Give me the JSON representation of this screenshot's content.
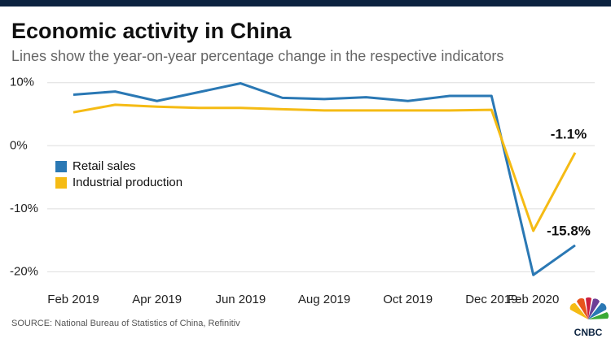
{
  "chart_data": {
    "type": "line",
    "title": "Economic activity in China",
    "subtitle": "Lines show the year-on-year percentage change in the respective indicators",
    "source": "SOURCE: National Bureau of Statistics of China, Refinitiv",
    "logo": "CNBC",
    "categories": [
      "Feb 2019",
      null,
      "Apr 2019",
      null,
      "Jun 2019",
      null,
      "Aug 2019",
      null,
      "Oct 2019",
      null,
      "Dec 2019",
      "Feb 2020",
      null
    ],
    "series": [
      {
        "name": "Retail sales",
        "color": "#2a78b4",
        "values": [
          8.1,
          8.6,
          7.1,
          8.5,
          9.9,
          7.6,
          7.4,
          7.7,
          7.1,
          7.9,
          7.9,
          -20.5,
          -15.8
        ],
        "value_labels": [
          null,
          null,
          null,
          null,
          null,
          null,
          null,
          null,
          null,
          null,
          null,
          null,
          "-15.8%"
        ]
      },
      {
        "name": "Industrial production",
        "color": "#f5bb14",
        "values": [
          5.3,
          6.5,
          6.2,
          6.0,
          6.0,
          5.8,
          5.6,
          5.6,
          5.6,
          5.6,
          5.7,
          -13.5,
          -1.1
        ],
        "value_labels": [
          null,
          null,
          null,
          null,
          null,
          null,
          null,
          null,
          null,
          null,
          null,
          null,
          "-1.1%"
        ]
      }
    ],
    "ylim": [
      -21.5,
      11
    ],
    "yticks": [
      {
        "value": 10,
        "label": "10%"
      },
      {
        "value": 0,
        "label": "0%"
      },
      {
        "value": -10,
        "label": "-10%"
      },
      {
        "value": -20,
        "label": "-20%"
      }
    ],
    "grid": true,
    "legend": "left"
  }
}
